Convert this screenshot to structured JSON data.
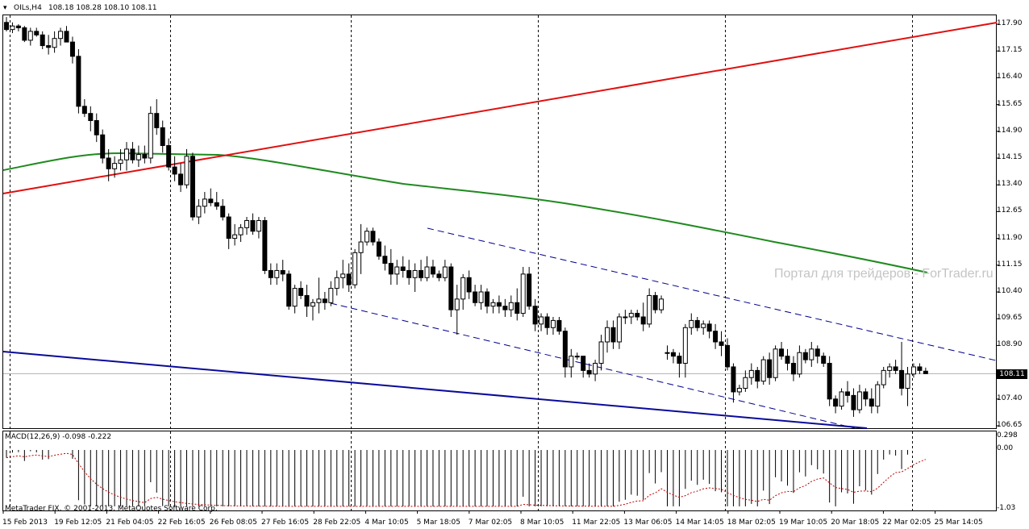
{
  "header": {
    "symbol_label": "OILs,H4",
    "quotes": "108.18 108.28 108.10 108.11"
  },
  "macd_header": "MACD(12,26,9) -0.098 -0.222",
  "copyright": "MetaTrader FIX, © 2001-2013, MetaQuotes Software Corp.",
  "watermark": "Портал для трейдеров - ForTrader.ru",
  "current_price_label": "108.11",
  "price_axis_labels": [
    "117.90",
    "117.15",
    "116.40",
    "115.65",
    "114.90",
    "114.15",
    "113.40",
    "112.65",
    "111.90",
    "111.15",
    "110.40",
    "109.65",
    "108.90",
    "107.40",
    "106.65"
  ],
  "macd_axis_labels": [
    "0.298",
    "0.00",
    "-1.03"
  ],
  "time_axis_labels": [
    "15 Feb 2013",
    "19 Feb 12:05",
    "21 Feb 04:05",
    "22 Feb 16:05",
    "26 Feb 08:05",
    "27 Feb 16:05",
    "28 Feb 22:05",
    "4 Mar 10:05",
    "5 Mar 18:05",
    "7 Mar 02:05",
    "8 Mar 10:05",
    "11 Mar 22:05",
    "13 Mar 06:05",
    "14 Mar 14:05",
    "18 Mar 02:05",
    "19 Mar 10:05",
    "20 Mar 18:05",
    "22 Mar 02:05",
    "25 Mar 14:05"
  ],
  "colors": {
    "background": "#ffffff",
    "grid": "#000000",
    "ma_line": "#1f8a1f",
    "red_trend": "#e01010",
    "blue_trend": "#0a0a9a",
    "channel": "#00008b",
    "signal": "#c00000",
    "bull_candle": "#ffffff",
    "bear_candle": "#000000"
  },
  "chart_data": {
    "type": "candlestick",
    "symbol": "OILs",
    "timeframe": "H4",
    "price_range": [
      106.55,
      118.25
    ],
    "ohlc_last": {
      "open": 108.18,
      "high": 108.28,
      "low": 108.1,
      "close": 108.11
    },
    "current_price": 108.11,
    "candles": [
      [
        117.95,
        118.1,
        117.7,
        117.75
      ],
      [
        117.75,
        117.95,
        117.65,
        117.85
      ],
      [
        117.85,
        117.9,
        117.7,
        117.8
      ],
      [
        117.8,
        117.85,
        117.4,
        117.45
      ],
      [
        117.45,
        117.8,
        117.3,
        117.7
      ],
      [
        117.7,
        117.8,
        117.55,
        117.6
      ],
      [
        117.6,
        117.7,
        117.2,
        117.3
      ],
      [
        117.3,
        117.6,
        117.05,
        117.25
      ],
      [
        117.25,
        117.7,
        117.1,
        117.5
      ],
      [
        117.5,
        117.8,
        117.3,
        117.7
      ],
      [
        117.7,
        117.85,
        117.4,
        117.4
      ],
      [
        117.4,
        117.55,
        116.8,
        117.0
      ],
      [
        117.0,
        117.2,
        115.4,
        115.6
      ],
      [
        115.6,
        115.8,
        115.3,
        115.4
      ],
      [
        115.4,
        115.6,
        114.9,
        115.2
      ],
      [
        115.2,
        115.4,
        114.6,
        114.8
      ],
      [
        114.8,
        114.95,
        114.0,
        114.15
      ],
      [
        114.15,
        114.4,
        113.5,
        113.85
      ],
      [
        113.85,
        114.2,
        113.6,
        114.0
      ],
      [
        114.0,
        114.4,
        113.8,
        114.1
      ],
      [
        114.1,
        114.6,
        113.8,
        114.4
      ],
      [
        114.4,
        114.6,
        114.0,
        114.1
      ],
      [
        114.1,
        114.5,
        113.9,
        114.25
      ],
      [
        114.25,
        114.5,
        114.0,
        114.15
      ],
      [
        114.15,
        115.6,
        114.0,
        115.4
      ],
      [
        115.4,
        115.8,
        114.8,
        115.0
      ],
      [
        115.0,
        115.2,
        114.3,
        114.5
      ],
      [
        114.5,
        114.7,
        113.8,
        113.9
      ],
      [
        113.9,
        114.2,
        113.5,
        113.7
      ],
      [
        113.7,
        114.0,
        113.2,
        113.4
      ],
      [
        113.4,
        114.4,
        113.3,
        114.2
      ],
      [
        114.2,
        114.3,
        112.4,
        112.5
      ],
      [
        112.5,
        113.0,
        112.3,
        112.8
      ],
      [
        112.8,
        113.2,
        112.6,
        113.0
      ],
      [
        113.0,
        113.3,
        112.8,
        112.9
      ],
      [
        112.9,
        113.2,
        112.7,
        112.8
      ],
      [
        112.8,
        113.0,
        112.4,
        112.5
      ],
      [
        112.5,
        112.6,
        111.6,
        111.9
      ],
      [
        111.9,
        112.3,
        111.7,
        112.0
      ],
      [
        112.0,
        112.3,
        111.8,
        112.2
      ],
      [
        112.2,
        112.5,
        112.0,
        112.4
      ],
      [
        112.4,
        112.6,
        112.0,
        112.1
      ],
      [
        112.1,
        112.5,
        111.9,
        112.4
      ],
      [
        112.4,
        112.5,
        110.9,
        111.0
      ],
      [
        111.0,
        111.2,
        110.6,
        110.8
      ],
      [
        110.8,
        111.2,
        110.6,
        111.0
      ],
      [
        111.0,
        111.3,
        110.7,
        110.9
      ],
      [
        110.9,
        111.0,
        109.9,
        110.0
      ],
      [
        110.0,
        110.6,
        109.8,
        110.5
      ],
      [
        110.5,
        110.7,
        110.2,
        110.3
      ],
      [
        110.3,
        110.6,
        109.7,
        110.0
      ],
      [
        110.0,
        110.2,
        109.6,
        110.1
      ],
      [
        110.1,
        110.8,
        109.8,
        110.2
      ],
      [
        110.2,
        110.4,
        109.9,
        110.1
      ],
      [
        110.1,
        110.7,
        110.0,
        110.5
      ],
      [
        110.5,
        111.0,
        110.3,
        110.8
      ],
      [
        110.8,
        111.3,
        110.5,
        110.9
      ],
      [
        110.9,
        111.2,
        110.4,
        110.6
      ],
      [
        110.6,
        111.6,
        110.5,
        111.5
      ],
      [
        111.5,
        112.3,
        110.9,
        111.8
      ],
      [
        111.8,
        112.2,
        111.7,
        112.1
      ],
      [
        112.1,
        112.2,
        111.7,
        111.8
      ],
      [
        111.8,
        111.9,
        111.3,
        111.4
      ],
      [
        111.4,
        111.7,
        111.0,
        111.2
      ],
      [
        111.2,
        111.6,
        110.6,
        110.9
      ],
      [
        110.9,
        111.3,
        110.6,
        111.1
      ],
      [
        111.1,
        111.4,
        110.8,
        111.0
      ],
      [
        111.0,
        111.3,
        110.6,
        110.8
      ],
      [
        110.8,
        111.2,
        110.4,
        111.0
      ],
      [
        111.0,
        111.3,
        110.7,
        110.8
      ],
      [
        110.8,
        111.4,
        110.7,
        111.1
      ],
      [
        111.1,
        111.3,
        110.8,
        110.9
      ],
      [
        110.9,
        111.0,
        110.7,
        110.8
      ],
      [
        110.8,
        111.3,
        110.7,
        111.1
      ],
      [
        111.1,
        111.2,
        109.7,
        109.9
      ],
      [
        109.9,
        110.6,
        109.2,
        110.2
      ],
      [
        110.2,
        110.9,
        109.9,
        110.8
      ],
      [
        110.8,
        111.0,
        110.2,
        110.4
      ],
      [
        110.4,
        110.6,
        110.0,
        110.1
      ],
      [
        110.1,
        110.6,
        109.9,
        110.4
      ],
      [
        110.4,
        110.5,
        109.8,
        110.0
      ],
      [
        110.0,
        110.2,
        109.8,
        110.1
      ],
      [
        110.1,
        110.3,
        109.8,
        110.0
      ],
      [
        110.0,
        110.2,
        109.7,
        109.9
      ],
      [
        109.9,
        110.3,
        109.7,
        110.1
      ],
      [
        110.1,
        110.5,
        109.6,
        109.8
      ],
      [
        109.8,
        111.1,
        109.7,
        110.9
      ],
      [
        110.9,
        111.1,
        109.9,
        110.0
      ],
      [
        110.0,
        110.2,
        109.3,
        109.5
      ],
      [
        109.5,
        109.8,
        109.3,
        109.7
      ],
      [
        109.7,
        109.8,
        109.2,
        109.4
      ],
      [
        109.4,
        109.7,
        109.2,
        109.6
      ],
      [
        109.6,
        109.7,
        109.2,
        109.3
      ],
      [
        109.3,
        109.4,
        108.0,
        108.3
      ],
      [
        108.3,
        108.8,
        108.0,
        108.6
      ],
      [
        108.6,
        108.7,
        108.5,
        108.6
      ],
      [
        108.6,
        108.6,
        108.0,
        108.2
      ],
      [
        108.2,
        108.4,
        108.0,
        108.1
      ],
      [
        108.1,
        108.5,
        107.9,
        108.4
      ],
      [
        108.4,
        109.2,
        108.2,
        109.0
      ],
      [
        109.0,
        109.6,
        108.7,
        109.4
      ],
      [
        109.4,
        109.6,
        108.8,
        109.0
      ],
      [
        109.0,
        109.8,
        108.8,
        109.7
      ],
      [
        109.7,
        109.9,
        109.5,
        109.7
      ],
      [
        109.7,
        109.9,
        109.5,
        109.8
      ],
      [
        109.8,
        109.9,
        109.6,
        109.7
      ],
      [
        109.7,
        110.1,
        109.3,
        109.5
      ],
      [
        109.5,
        110.5,
        109.4,
        110.3
      ],
      [
        110.3,
        110.4,
        109.8,
        109.9
      ],
      [
        109.9,
        110.3,
        109.8,
        110.2
      ],
      [
        108.7,
        108.9,
        108.5,
        108.7
      ],
      [
        108.7,
        108.8,
        108.4,
        108.6
      ],
      [
        108.6,
        108.7,
        108.0,
        108.4
      ],
      [
        108.4,
        109.5,
        108.0,
        109.4
      ],
      [
        109.4,
        109.8,
        109.2,
        109.6
      ],
      [
        109.6,
        109.7,
        109.3,
        109.4
      ],
      [
        109.4,
        109.6,
        109.2,
        109.5
      ],
      [
        109.5,
        109.6,
        109.1,
        109.3
      ],
      [
        109.3,
        109.5,
        108.8,
        109.0
      ],
      [
        109.0,
        109.3,
        108.6,
        108.9
      ],
      [
        108.9,
        109.1,
        108.2,
        108.3
      ],
      [
        108.3,
        108.4,
        107.3,
        107.6
      ],
      [
        107.6,
        107.8,
        107.5,
        107.7
      ],
      [
        107.7,
        108.2,
        107.6,
        108.0
      ],
      [
        108.0,
        108.4,
        107.8,
        108.2
      ],
      [
        108.2,
        108.3,
        107.7,
        107.9
      ],
      [
        107.9,
        108.6,
        107.8,
        108.5
      ],
      [
        108.5,
        108.7,
        107.8,
        108.0
      ],
      [
        108.0,
        108.9,
        107.9,
        108.8
      ],
      [
        108.8,
        109.0,
        108.5,
        108.6
      ],
      [
        108.6,
        108.8,
        108.2,
        108.4
      ],
      [
        108.4,
        108.6,
        107.9,
        108.1
      ],
      [
        108.1,
        108.9,
        108.0,
        108.7
      ],
      [
        108.7,
        108.8,
        108.4,
        108.5
      ],
      [
        108.5,
        109.0,
        108.3,
        108.8
      ],
      [
        108.8,
        108.9,
        108.4,
        108.6
      ],
      [
        108.6,
        108.7,
        108.3,
        108.4
      ],
      [
        108.4,
        108.6,
        107.2,
        107.4
      ],
      [
        107.4,
        107.5,
        107.0,
        107.2
      ],
      [
        107.2,
        107.7,
        107.1,
        107.6
      ],
      [
        107.6,
        107.9,
        107.3,
        107.5
      ],
      [
        107.5,
        107.7,
        106.9,
        107.1
      ],
      [
        107.1,
        107.8,
        107.0,
        107.6
      ],
      [
        107.6,
        107.7,
        107.2,
        107.4
      ],
      [
        107.4,
        107.7,
        107.0,
        107.2
      ],
      [
        107.2,
        107.9,
        107.0,
        107.8
      ],
      [
        107.8,
        108.3,
        107.7,
        108.2
      ],
      [
        108.2,
        108.4,
        108.0,
        108.3
      ],
      [
        108.3,
        108.5,
        108.1,
        108.2
      ],
      [
        108.2,
        109.0,
        107.5,
        107.7
      ],
      [
        107.7,
        108.3,
        107.2,
        108.1
      ],
      [
        108.1,
        108.4,
        108.0,
        108.3
      ],
      [
        108.3,
        108.4,
        108.1,
        108.2
      ],
      [
        108.18,
        108.28,
        108.1,
        108.11
      ]
    ],
    "macd": {
      "label": "MACD(12,26,9)",
      "main": -0.098,
      "signal": -0.222,
      "range": [
        -1.03,
        0.298
      ]
    }
  }
}
